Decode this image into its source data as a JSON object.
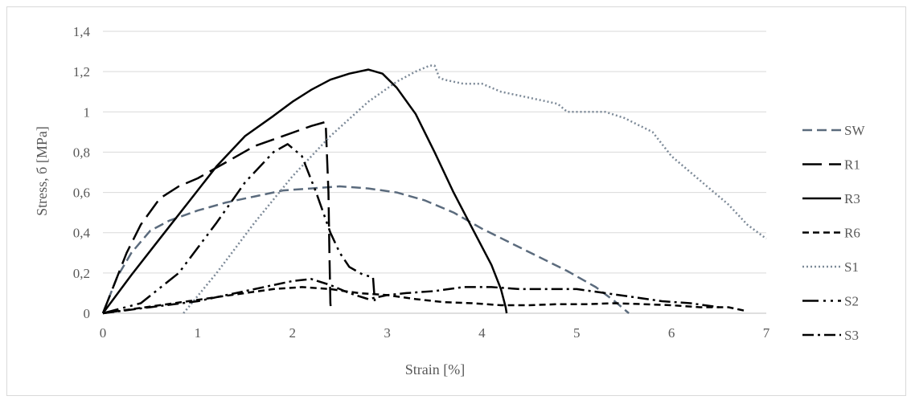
{
  "chart_data": {
    "type": "line",
    "xlabel": "Strain [%]",
    "ylabel": "Stress, б [MPa]",
    "xlim": [
      0,
      7
    ],
    "ylim": [
      0,
      1.4
    ],
    "xticks": [
      0,
      1,
      2,
      3,
      4,
      5,
      6,
      7
    ],
    "yticks": [
      0,
      0.2,
      0.4,
      0.6,
      0.8,
      1,
      1.2,
      1.4
    ],
    "xtick_labels": [
      "0",
      "1",
      "2",
      "3",
      "4",
      "5",
      "6",
      "7"
    ],
    "ytick_labels": [
      "0",
      "0,2",
      "0,4",
      "0,6",
      "0,8",
      "1",
      "1,2",
      "1,4"
    ],
    "grid": "horizontal",
    "legend": "right",
    "series": [
      {
        "name": "SW",
        "color": "#5b6b7d",
        "dash": "12,6",
        "width": 2.5,
        "x": [
          0,
          0.15,
          0.3,
          0.5,
          0.7,
          1,
          1.3,
          1.6,
          1.9,
          2.2,
          2.5,
          2.8,
          3.1,
          3.4,
          3.7,
          4,
          4.3,
          4.6,
          4.9,
          5.2,
          5.4,
          5.55
        ],
        "y": [
          0,
          0.18,
          0.3,
          0.41,
          0.46,
          0.51,
          0.55,
          0.58,
          0.61,
          0.62,
          0.63,
          0.62,
          0.6,
          0.56,
          0.5,
          0.42,
          0.35,
          0.28,
          0.21,
          0.13,
          0.06,
          0
        ]
      },
      {
        "name": "R1",
        "color": "#000000",
        "dash": "24,9",
        "width": 2.5,
        "x": [
          0,
          0.1,
          0.25,
          0.4,
          0.6,
          0.8,
          1,
          1.3,
          1.6,
          1.9,
          2.2,
          2.35,
          2.38,
          2.39,
          2.4,
          2.41
        ],
        "y": [
          0,
          0.12,
          0.3,
          0.44,
          0.57,
          0.63,
          0.67,
          0.75,
          0.83,
          0.88,
          0.93,
          0.95,
          0.6,
          0.3,
          0.05,
          0
        ]
      },
      {
        "name": "R3",
        "color": "#000000",
        "dash": "",
        "width": 2.5,
        "x": [
          0,
          0.3,
          0.6,
          0.9,
          1.2,
          1.5,
          1.8,
          2,
          2.2,
          2.4,
          2.6,
          2.8,
          2.95,
          3.1,
          3.3,
          3.5,
          3.7,
          3.9,
          4.1,
          4.2,
          4.25,
          4.26
        ],
        "y": [
          0,
          0.19,
          0.37,
          0.55,
          0.73,
          0.88,
          0.98,
          1.05,
          1.11,
          1.16,
          1.19,
          1.21,
          1.19,
          1.12,
          0.99,
          0.8,
          0.6,
          0.42,
          0.24,
          0.12,
          0.03,
          0
        ]
      },
      {
        "name": "R6",
        "color": "#000000",
        "dash": "8,5",
        "width": 2.5,
        "x": [
          0,
          0.3,
          0.6,
          0.9,
          1.2,
          1.5,
          1.8,
          2.1,
          2.4,
          2.7,
          3,
          3.3,
          3.6,
          3.9,
          4.2,
          4.5,
          4.8,
          5.1,
          5.4,
          5.7,
          6,
          6.3,
          6.6,
          6.8
        ],
        "y": [
          0,
          0.02,
          0.04,
          0.06,
          0.08,
          0.1,
          0.12,
          0.13,
          0.12,
          0.1,
          0.09,
          0.07,
          0.055,
          0.05,
          0.04,
          0.04,
          0.045,
          0.045,
          0.05,
          0.045,
          0.04,
          0.03,
          0.03,
          0.01
        ]
      },
      {
        "name": "S1",
        "color": "#7d8a98",
        "dash": "2,3",
        "width": 2.5,
        "x": [
          0.85,
          1.2,
          1.6,
          2,
          2.4,
          2.8,
          3.1,
          3.3,
          3.45,
          3.5,
          3.55,
          3.6,
          3.8,
          4,
          4.2,
          4.5,
          4.8,
          4.9,
          5.1,
          5.3,
          5.5,
          5.8,
          6,
          6.2,
          6.4,
          6.6,
          6.8,
          7
        ],
        "y": [
          0,
          0.2,
          0.45,
          0.68,
          0.88,
          1.05,
          1.15,
          1.2,
          1.23,
          1.23,
          1.17,
          1.16,
          1.14,
          1.14,
          1.1,
          1.07,
          1.04,
          1,
          1,
          1,
          0.97,
          0.9,
          0.78,
          0.7,
          0.62,
          0.54,
          0.44,
          0.37
        ]
      },
      {
        "name": "S2",
        "color": "#000000",
        "dash": "20,6,3,6,3,6",
        "width": 2.5,
        "x": [
          0,
          0.4,
          0.8,
          1.2,
          1.5,
          1.8,
          1.95,
          2.1,
          2.25,
          2.4,
          2.5,
          2.6,
          2.75,
          2.85,
          2.87
        ],
        "y": [
          0,
          0.05,
          0.2,
          0.45,
          0.65,
          0.8,
          0.84,
          0.78,
          0.6,
          0.4,
          0.3,
          0.23,
          0.19,
          0.18,
          0.05
        ]
      },
      {
        "name": "S3",
        "color": "#000000",
        "dash": "14,5,3,5",
        "width": 2.5,
        "x": [
          0,
          0.5,
          1,
          1.5,
          2,
          2.2,
          2.4,
          2.6,
          2.8,
          3,
          3.2,
          3.5,
          3.8,
          4.1,
          4.4,
          4.7,
          5,
          5.3,
          5.6,
          5.9,
          6.2,
          6.5
        ],
        "y": [
          0,
          0.03,
          0.06,
          0.11,
          0.16,
          0.17,
          0.14,
          0.1,
          0.07,
          0.09,
          0.1,
          0.11,
          0.13,
          0.13,
          0.12,
          0.12,
          0.12,
          0.1,
          0.08,
          0.06,
          0.05,
          0.03
        ]
      }
    ]
  }
}
